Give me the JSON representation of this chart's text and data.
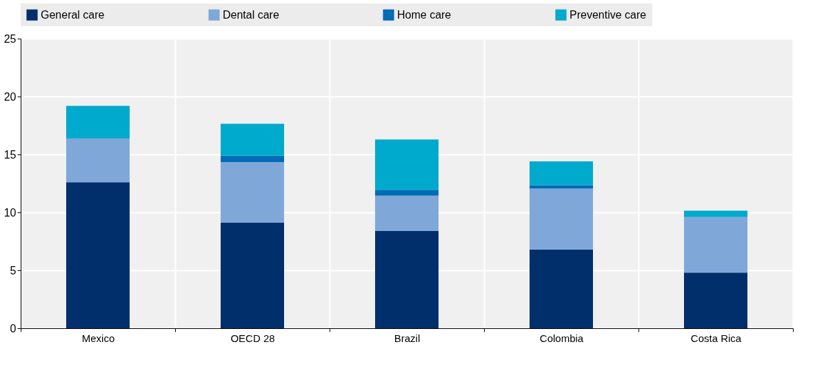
{
  "chart_data": {
    "type": "bar",
    "stacked": true,
    "categories": [
      "Mexico",
      "OECD 28",
      "Brazil",
      "Colombia",
      "Costa Rica"
    ],
    "series": [
      {
        "name": "General care",
        "color": "#002f6c",
        "values": [
          12.6,
          9.1,
          8.4,
          6.8,
          4.8
        ]
      },
      {
        "name": "Dental care",
        "color": "#7fa8d9",
        "values": [
          3.75,
          5.25,
          3.05,
          5.25,
          4.8
        ]
      },
      {
        "name": "Home care",
        "color": "#006bb6",
        "values": [
          0.05,
          0.55,
          0.5,
          0.3,
          0
        ]
      },
      {
        "name": "Preventive care",
        "color": "#00aacc",
        "values": [
          2.8,
          2.75,
          4.35,
          2.05,
          0.55
        ]
      }
    ],
    "ylim": [
      0,
      25
    ],
    "yticks": [
      0,
      5,
      10,
      15,
      20,
      25
    ],
    "grid": true,
    "legend": "top"
  }
}
